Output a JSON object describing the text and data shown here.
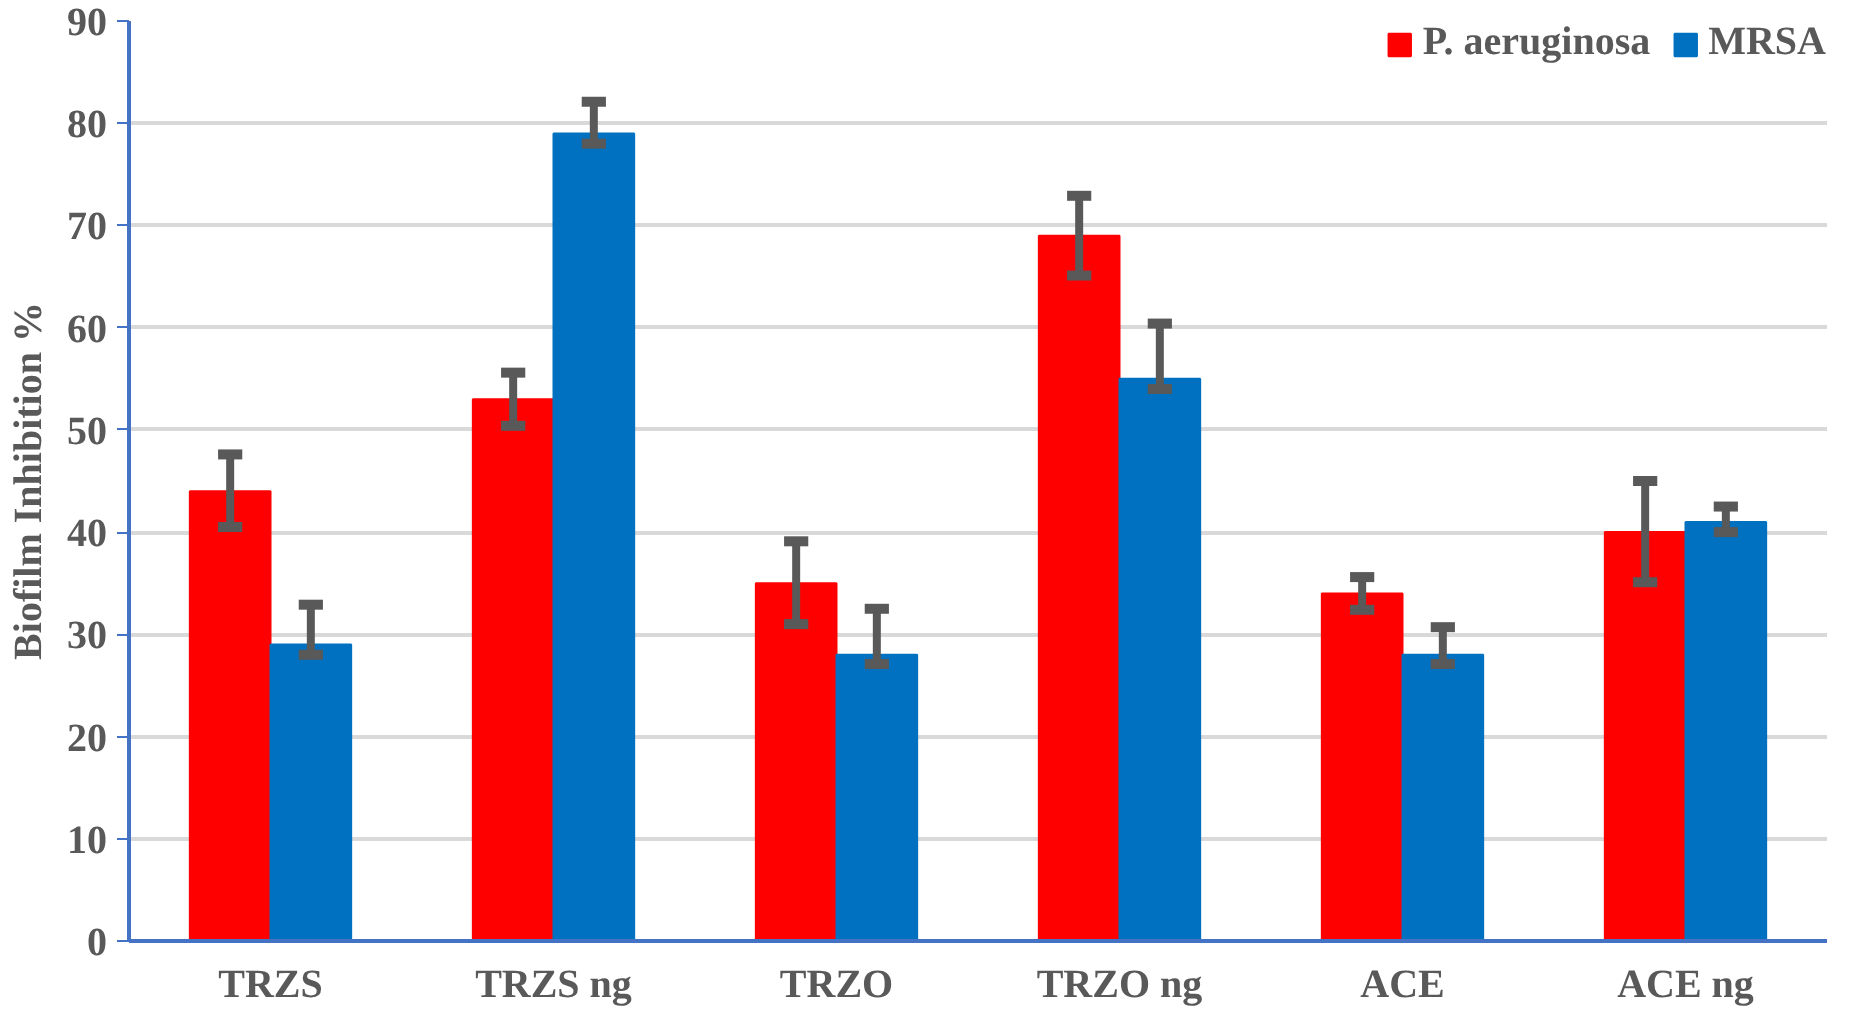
{
  "chart_data": {
    "type": "bar",
    "ylabel": "Biofilm Inhibition %",
    "categories": [
      "TRZS",
      "TRZS ng",
      "TRZO",
      "TRZO ng",
      "ACE",
      "ACE ng"
    ],
    "series": [
      {
        "name": "P. aeruginosa",
        "color": "#ff0000",
        "values": [
          44,
          53,
          35,
          69,
          34,
          40
        ],
        "errors": [
          [
            40.5,
            47.6
          ],
          [
            50.4,
            55.6
          ],
          [
            31,
            39.1
          ],
          [
            65.1,
            72.9
          ],
          [
            32.4,
            35.6
          ],
          [
            35.1,
            45
          ]
        ]
      },
      {
        "name": "MRSA",
        "color": "#0070c0",
        "values": [
          29,
          79,
          28,
          55,
          28,
          41
        ],
        "errors": [
          [
            28,
            32.9
          ],
          [
            78,
            82.1
          ],
          [
            27.1,
            32.5
          ],
          [
            54,
            60.4
          ],
          [
            27.1,
            30.7
          ],
          [
            40,
            42.5
          ]
        ]
      }
    ],
    "ylim": [
      0,
      90
    ],
    "yticks": [
      0,
      10,
      20,
      30,
      40,
      50,
      60,
      70,
      80,
      90
    ],
    "grid": "y",
    "legend": "top right"
  }
}
